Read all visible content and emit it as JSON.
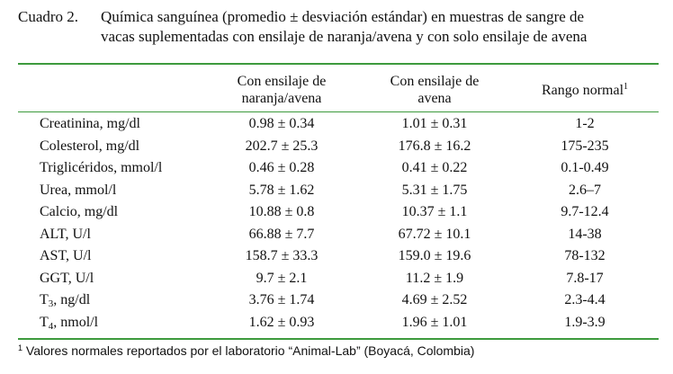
{
  "caption": {
    "label": "Cuadro 2.",
    "line1": "Química sanguínea (promedio ± desviación estándar) en muestras de sangre de",
    "line2": "vacas suplementadas con ensilaje de naranja/avena y con solo ensilaje de avena"
  },
  "table": {
    "headers": {
      "param": "",
      "orange_oat": [
        "Con ensilaje de",
        "naranja/avena"
      ],
      "oat": [
        "Con ensilaje de",
        "avena"
      ],
      "normal": "Rango normal",
      "normal_sup": "1"
    },
    "rows": [
      {
        "name": "Creatinina, mg/dl",
        "sub": "",
        "suffix": "",
        "orange_oat": "0.98 ± 0.34",
        "oat": "1.01 ± 0.31",
        "normal": "1-2"
      },
      {
        "name": "Colesterol, mg/dl",
        "sub": "",
        "suffix": "",
        "orange_oat": "202.7 ± 25.3",
        "oat": "176.8 ± 16.2",
        "normal": "175-235"
      },
      {
        "name": "Triglicéridos, mmol/l",
        "sub": "",
        "suffix": "",
        "orange_oat": "0.46 ± 0.28",
        "oat": "0.41 ± 0.22",
        "normal": "0.1-0.49"
      },
      {
        "name": "Urea, mmol/l",
        "sub": "",
        "suffix": "",
        "orange_oat": "5.78 ± 1.62",
        "oat": "5.31 ± 1.75",
        "normal": "2.6–7"
      },
      {
        "name": "Calcio, mg/dl",
        "sub": "",
        "suffix": "",
        "orange_oat": "10.88 ± 0.8",
        "oat": "10.37 ± 1.1",
        "normal": "9.7-12.4"
      },
      {
        "name": "ALT, U/l",
        "sub": "",
        "suffix": "",
        "orange_oat": "66.88 ± 7.7",
        "oat": "67.72 ± 10.1",
        "normal": "14-38"
      },
      {
        "name": "AST, U/l",
        "sub": "",
        "suffix": "",
        "orange_oat": "158.7 ± 33.3",
        "oat": "159.0 ± 19.6",
        "normal": "78-132"
      },
      {
        "name": "GGT, U/l",
        "sub": "",
        "suffix": "",
        "orange_oat": "9.7 ± 2.1",
        "oat": "11.2 ± 1.9",
        "normal": "7.8-17"
      },
      {
        "name": "T",
        "sub": "3",
        "suffix": ", ng/dl",
        "orange_oat": "3.76 ± 1.74",
        "oat": "4.69 ± 2.52",
        "normal": "2.3-4.4"
      },
      {
        "name": "T",
        "sub": "4",
        "suffix": ", nmol/l",
        "orange_oat": "1.62 ± 0.93",
        "oat": "1.96 ± 1.01",
        "normal": "1.9-3.9"
      }
    ]
  },
  "footnote": {
    "sup": "1",
    "text": " Valores normales reportados por el laboratorio “Animal-Lab” (Boyacá, Colombia)"
  },
  "colors": {
    "rule": "#3d9a3d"
  }
}
